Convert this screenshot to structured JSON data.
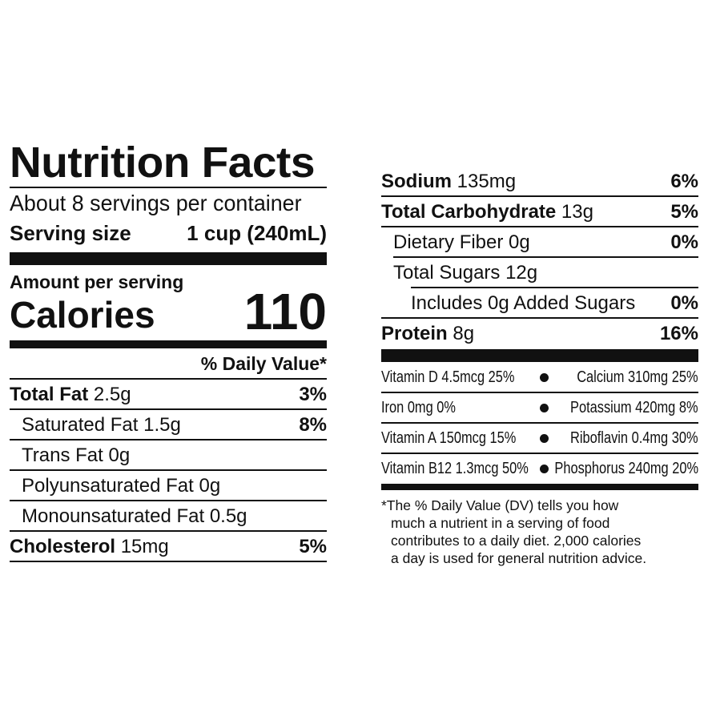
{
  "title": "Nutrition Facts",
  "servings_per_container": "About 8 servings per container",
  "serving_size_label": "Serving size",
  "serving_size_value": "1 cup (240mL)",
  "amount_per_serving": "Amount per serving",
  "calories_label": "Calories",
  "calories_value": "110",
  "daily_value_header": "% Daily Value*",
  "left_rows": [
    {
      "name": "Total Fat",
      "amount": "2.5g",
      "dv": "3%",
      "bold": true,
      "indent": 0
    },
    {
      "name": "Saturated Fat",
      "amount": "1.5g",
      "dv": "8%",
      "bold": false,
      "indent": 1
    },
    {
      "name": "Trans Fat",
      "amount": "0g",
      "dv": "",
      "bold": false,
      "indent": 1
    },
    {
      "name": "Polyunsaturated Fat",
      "amount": "0g",
      "dv": "",
      "bold": false,
      "indent": 1
    },
    {
      "name": "Monounsaturated Fat",
      "amount": "0.5g",
      "dv": "",
      "bold": false,
      "indent": 1
    },
    {
      "name": "Cholesterol",
      "amount": "15mg",
      "dv": "5%",
      "bold": true,
      "indent": 0
    }
  ],
  "right_rows": [
    {
      "name": "Sodium",
      "amount": "135mg",
      "dv": "6%",
      "bold": true,
      "indent": 0
    },
    {
      "name": "Total Carbohydrate",
      "amount": "13g",
      "dv": "5%",
      "bold": true,
      "indent": 0
    },
    {
      "name": "Dietary Fiber",
      "amount": "0g",
      "dv": "0%",
      "bold": false,
      "indent": 1
    },
    {
      "name": "Total Sugars",
      "amount": "12g",
      "dv": "",
      "bold": false,
      "indent": 1
    },
    {
      "name": "Includes 0g Added Sugars",
      "amount": "",
      "dv": "0%",
      "bold": false,
      "indent": 2
    },
    {
      "name": "Protein",
      "amount": "8g",
      "dv": "16%",
      "bold": true,
      "indent": 0
    }
  ],
  "vitamins": [
    {
      "left": "Vitamin D 4.5mcg 25%",
      "right": "Calcium 310mg 25%"
    },
    {
      "left": "Iron 0mg 0%",
      "right": "Potassium 420mg 8%"
    },
    {
      "left": "Vitamin A 150mcg 15%",
      "right": "Riboflavin 0.4mg 30%"
    },
    {
      "left": "Vitamin B12 1.3mcg 50%",
      "right": "Phosphorus 240mg 20%"
    }
  ],
  "footnote": [
    "*The % Daily Value (DV) tells you how",
    "much a nutrient in a serving of food",
    "contributes to a daily diet. 2,000 calories",
    "a day is used for general nutrition advice."
  ]
}
